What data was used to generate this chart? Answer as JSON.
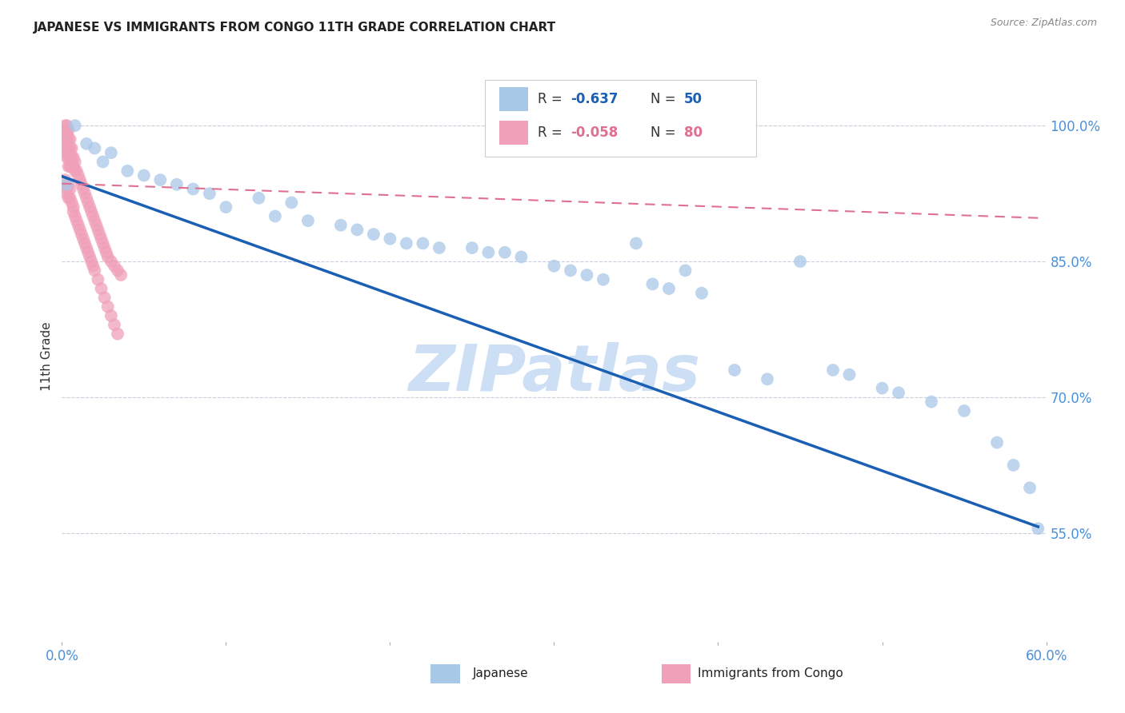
{
  "title": "JAPANESE VS IMMIGRANTS FROM CONGO 11TH GRADE CORRELATION CHART",
  "source_text": "Source: ZipAtlas.com",
  "ylabel": "11th Grade",
  "ytick_labels": [
    "100.0%",
    "85.0%",
    "70.0%",
    "55.0%"
  ],
  "ytick_values": [
    1.0,
    0.85,
    0.7,
    0.55
  ],
  "xmin": 0.0,
  "xmax": 0.6,
  "ymin": 0.43,
  "ymax": 1.06,
  "r_japanese": -0.637,
  "n_japanese": 50,
  "r_congo": -0.058,
  "n_congo": 80,
  "japanese_color": "#a8c8e8",
  "congo_color": "#f0a0b8",
  "japanese_line_color": "#1a5fb4",
  "congo_line_color": "#e07090",
  "watermark_text": "ZIPatlas",
  "watermark_color": "#ccdff5",
  "background_color": "#ffffff",
  "grid_color": "#ccccdd",
  "japanese_scatter_x": [
    0.003,
    0.008,
    0.015,
    0.02,
    0.025,
    0.03,
    0.04,
    0.05,
    0.06,
    0.07,
    0.08,
    0.09,
    0.1,
    0.12,
    0.13,
    0.14,
    0.15,
    0.17,
    0.18,
    0.19,
    0.2,
    0.21,
    0.22,
    0.23,
    0.25,
    0.26,
    0.27,
    0.28,
    0.3,
    0.31,
    0.32,
    0.33,
    0.35,
    0.36,
    0.37,
    0.38,
    0.39,
    0.41,
    0.43,
    0.45,
    0.47,
    0.48,
    0.5,
    0.51,
    0.53,
    0.55,
    0.57,
    0.58,
    0.59,
    0.595
  ],
  "japanese_scatter_y": [
    0.935,
    1.0,
    0.98,
    0.975,
    0.96,
    0.97,
    0.95,
    0.945,
    0.94,
    0.935,
    0.93,
    0.925,
    0.91,
    0.92,
    0.9,
    0.915,
    0.895,
    0.89,
    0.885,
    0.88,
    0.875,
    0.87,
    0.87,
    0.865,
    0.865,
    0.86,
    0.86,
    0.855,
    0.845,
    0.84,
    0.835,
    0.83,
    0.87,
    0.825,
    0.82,
    0.84,
    0.815,
    0.73,
    0.72,
    0.85,
    0.73,
    0.725,
    0.71,
    0.705,
    0.695,
    0.685,
    0.65,
    0.625,
    0.6,
    0.555
  ],
  "congo_scatter_x": [
    0.002,
    0.002,
    0.003,
    0.003,
    0.003,
    0.003,
    0.003,
    0.003,
    0.003,
    0.003,
    0.004,
    0.004,
    0.004,
    0.004,
    0.004,
    0.005,
    0.005,
    0.005,
    0.005,
    0.006,
    0.006,
    0.006,
    0.007,
    0.007,
    0.008,
    0.008,
    0.009,
    0.01,
    0.011,
    0.012,
    0.013,
    0.014,
    0.015,
    0.016,
    0.017,
    0.018,
    0.019,
    0.02,
    0.021,
    0.022,
    0.023,
    0.024,
    0.025,
    0.026,
    0.027,
    0.028,
    0.03,
    0.032,
    0.034,
    0.036,
    0.002,
    0.003,
    0.003,
    0.004,
    0.004,
    0.005,
    0.005,
    0.006,
    0.007,
    0.007,
    0.008,
    0.009,
    0.01,
    0.011,
    0.012,
    0.013,
    0.014,
    0.015,
    0.016,
    0.017,
    0.018,
    0.019,
    0.02,
    0.022,
    0.024,
    0.026,
    0.028,
    0.03,
    0.032,
    0.034
  ],
  "congo_scatter_y": [
    1.0,
    0.995,
    1.0,
    0.995,
    0.99,
    0.985,
    0.98,
    0.975,
    0.97,
    0.965,
    0.995,
    0.985,
    0.975,
    0.965,
    0.955,
    0.985,
    0.975,
    0.965,
    0.955,
    0.975,
    0.965,
    0.955,
    0.965,
    0.955,
    0.96,
    0.95,
    0.95,
    0.945,
    0.94,
    0.935,
    0.93,
    0.925,
    0.92,
    0.915,
    0.91,
    0.905,
    0.9,
    0.895,
    0.89,
    0.885,
    0.88,
    0.875,
    0.87,
    0.865,
    0.86,
    0.855,
    0.85,
    0.845,
    0.84,
    0.835,
    0.94,
    0.93,
    0.925,
    0.935,
    0.92,
    0.93,
    0.92,
    0.915,
    0.91,
    0.905,
    0.9,
    0.895,
    0.89,
    0.885,
    0.88,
    0.875,
    0.87,
    0.865,
    0.86,
    0.855,
    0.85,
    0.845,
    0.84,
    0.83,
    0.82,
    0.81,
    0.8,
    0.79,
    0.78,
    0.77
  ],
  "japanese_trendline_x": [
    0.0,
    0.595
  ],
  "japanese_trendline_y": [
    0.944,
    0.557
  ],
  "congo_trendline_x": [
    0.0,
    0.595
  ],
  "congo_trendline_y": [
    0.936,
    0.898
  ]
}
